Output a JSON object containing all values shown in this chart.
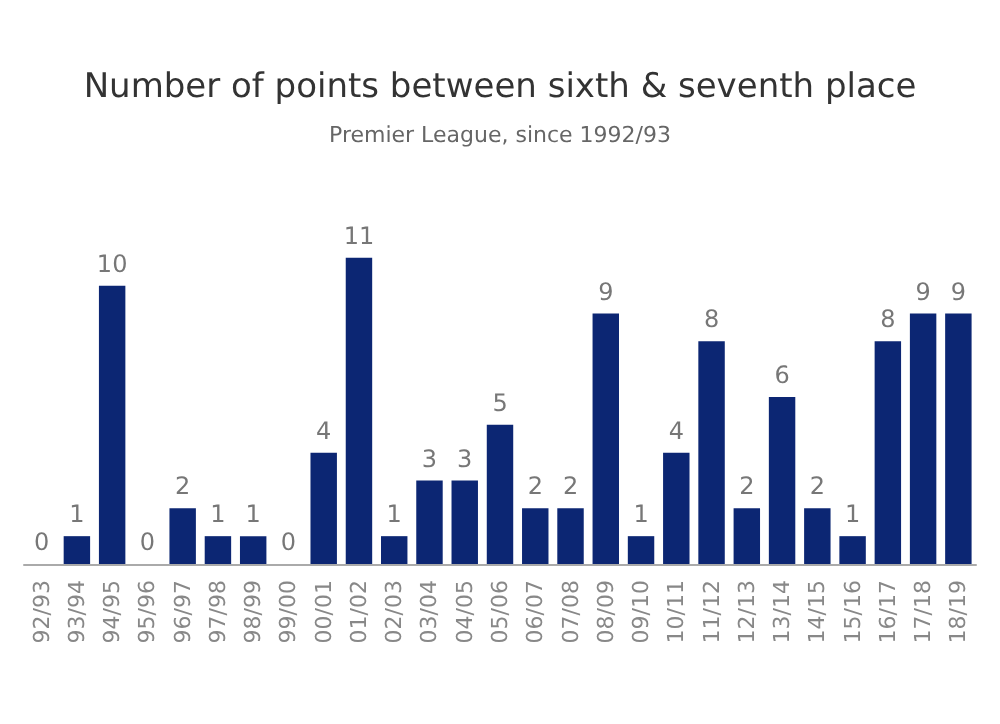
{
  "chart_data": {
    "type": "bar",
    "title": "Number of points between sixth & seventh place",
    "subtitle": "Premier League, since 1992/93",
    "categories": [
      "92/93",
      "93/94",
      "94/95",
      "95/96",
      "96/97",
      "97/98",
      "98/99",
      "99/00",
      "00/01",
      "01/02",
      "02/03",
      "03/04",
      "04/05",
      "05/06",
      "06/07",
      "07/08",
      "08/09",
      "09/10",
      "10/11",
      "11/12",
      "12/13",
      "13/14",
      "14/15",
      "15/16",
      "16/17",
      "17/18",
      "18/19"
    ],
    "values": [
      0,
      1,
      10,
      0,
      2,
      1,
      1,
      0,
      4,
      11,
      1,
      3,
      3,
      5,
      2,
      2,
      9,
      1,
      4,
      8,
      2,
      6,
      2,
      1,
      8,
      9,
      9
    ],
    "color": "#0c2673",
    "data_labels": true
  }
}
